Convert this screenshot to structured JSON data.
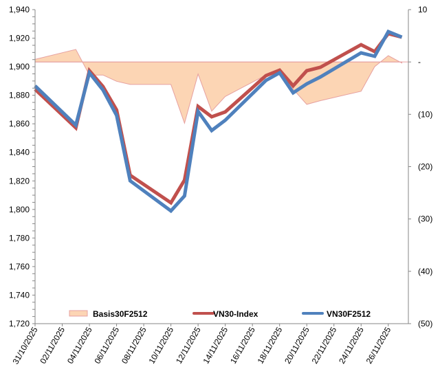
{
  "chart_data": {
    "type": "line",
    "title": "",
    "xlabel": "",
    "ylabel": "",
    "y2label": "",
    "grid": false,
    "legend_position": "bottom-inside",
    "dates": [
      "31/10/2025",
      "03/11/2025",
      "04/11/2025",
      "05/11/2025",
      "06/11/2025",
      "07/11/2025",
      "10/11/2025",
      "11/11/2025",
      "12/11/2025",
      "13/11/2025",
      "14/11/2025",
      "17/11/2025",
      "18/11/2025",
      "19/11/2025",
      "20/11/2025",
      "21/11/2025",
      "24/11/2025",
      "25/11/2025",
      "26/11/2025",
      "27/11/2025"
    ],
    "x_axis": {
      "type": "date",
      "range": [
        "31/10/2025",
        "27/11/2025"
      ],
      "tick_labels": [
        "31/10/2025",
        "02/11/2025",
        "04/11/2025",
        "06/11/2025",
        "08/11/2025",
        "10/11/2025",
        "12/11/2025",
        "14/11/2025",
        "16/11/2025",
        "18/11/2025",
        "20/11/2025",
        "22/11/2025",
        "24/11/2025",
        "26/11/2025"
      ]
    },
    "y_axis_left": {
      "range": [
        1720,
        1940
      ],
      "tick_labels": [
        "1,720",
        "1,740",
        "1,760",
        "1,780",
        "1,800",
        "1,820",
        "1,840",
        "1,860",
        "1,880",
        "1,900",
        "1,920",
        "1,940"
      ],
      "tick_values": [
        1720,
        1740,
        1760,
        1780,
        1800,
        1820,
        1840,
        1860,
        1880,
        1900,
        1920,
        1940
      ]
    },
    "y_axis_right": {
      "range": [
        -50,
        10
      ],
      "tick_labels": [
        "(50)",
        "(40)",
        "(30)",
        "(20)",
        "(10)",
        "-",
        "10"
      ],
      "tick_values": [
        -50,
        -40,
        -30,
        -20,
        -10,
        0,
        10
      ]
    },
    "series": [
      {
        "name": "Basis30F2512",
        "type": "area",
        "axis": "right",
        "color": "#fcd5b4",
        "border_color": "#e6a0a0",
        "values": [
          0.5,
          2.4,
          -2.5,
          -2.5,
          -3.7,
          -4.3,
          -4.3,
          -11.7,
          -2.3,
          -9.4,
          -6.6,
          -2.5,
          -1.5,
          -5.2,
          -8.1,
          -7.4,
          -5.6,
          -0.9,
          1.2,
          -0.2
        ]
      },
      {
        "name": "VN30-Index",
        "type": "line",
        "axis": "left",
        "color": "#c0504d",
        "values": [
          1884.2,
          1857.2,
          1897.2,
          1886.1,
          1869.7,
          1824.0,
          1804.7,
          1820.6,
          1872.1,
          1864.9,
          1868.3,
          1893.8,
          1897.6,
          1886.6,
          1897.2,
          1899.6,
          1915.4,
          1910.6,
          1923.2,
          1920.7
        ]
      },
      {
        "name": "VN30F2512",
        "type": "line",
        "axis": "left",
        "color": "#4f81bd",
        "values": [
          1886.6,
          1859.1,
          1895.7,
          1883.7,
          1865.9,
          1820.1,
          1799.0,
          1809.5,
          1868.7,
          1855.3,
          1862.5,
          1890.4,
          1895.7,
          1881.7,
          1888.0,
          1892.8,
          1909.7,
          1907.3,
          1924.6,
          1920.7
        ]
      }
    ]
  }
}
